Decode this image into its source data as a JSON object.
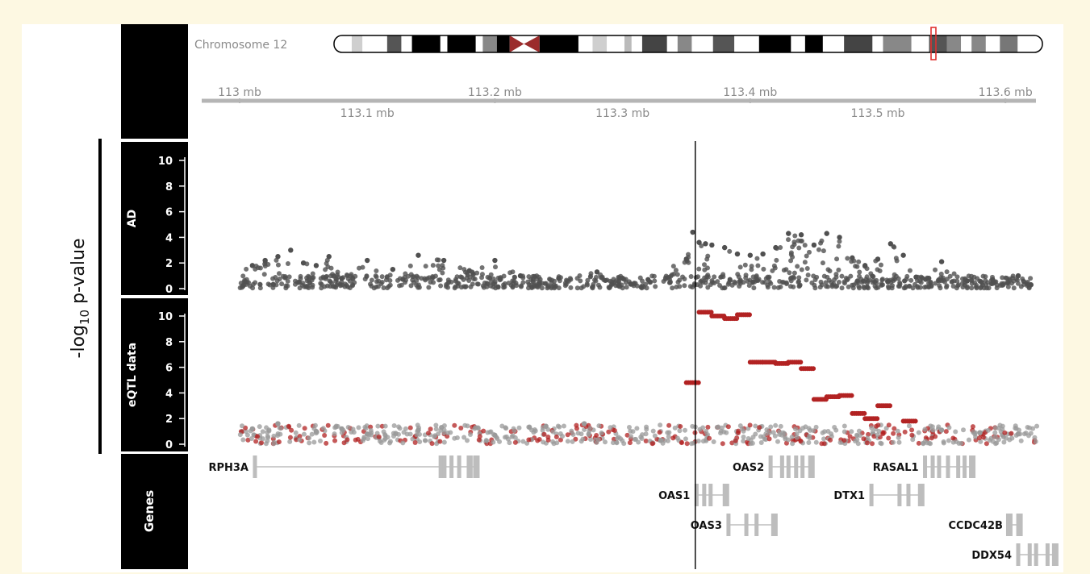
{
  "ylabel": {
    "prefix": "-log",
    "sub": "10",
    "suffix": " p-value"
  },
  "ideogram": {
    "label": "Chromosome 12",
    "highlight_color": "#e0302e",
    "centromere_color": "#9b2c2c"
  },
  "axis": {
    "unit": "mb",
    "range_mb": [
      112.97,
      113.645
    ],
    "top_ticks": [
      "113 mb",
      "113.2 mb",
      "113.4 mb",
      "113.6 mb"
    ],
    "bottom_ticks": [
      "113.1 mb",
      "113.3 mb",
      "113.5 mb"
    ],
    "top_tick_values": [
      113.0,
      113.2,
      113.4,
      113.6
    ],
    "bottom_tick_values": [
      113.1,
      113.3,
      113.5
    ]
  },
  "tracks": {
    "ad": {
      "label": "AD",
      "yticks": [
        "10",
        "8",
        "6",
        "4",
        "2",
        "0"
      ]
    },
    "eqtl": {
      "label": "eQTL data",
      "yticks": [
        "10",
        "8",
        "6",
        "4",
        "2",
        "0"
      ]
    },
    "genes": {
      "label": "Genes"
    }
  },
  "colors": {
    "ad_points": "#505050",
    "eqtl_grey": "#9a9a9a",
    "eqtl_red": "#b22222",
    "gene": "#bdbdbd",
    "track_header": "#000000"
  },
  "lead_variant_mb": 113.357,
  "chart_data": {
    "type": "scatter",
    "x_unit": "mb",
    "xlim": [
      112.97,
      113.645
    ],
    "ylim": [
      0,
      11
    ],
    "series": [
      {
        "name": "AD",
        "x": [
          113.01,
          113.02,
          113.03,
          113.04,
          113.05,
          113.06,
          113.07,
          113.08,
          113.1,
          113.12,
          113.14,
          113.16,
          113.18,
          113.2,
          113.22,
          113.25,
          113.28,
          113.3,
          113.32,
          113.35,
          113.355,
          113.36,
          113.365,
          113.37,
          113.38,
          113.39,
          113.4,
          113.41,
          113.42,
          113.43,
          113.44,
          113.45,
          113.46,
          113.47,
          113.48,
          113.49,
          113.5,
          113.51,
          113.52,
          113.53,
          113.55,
          113.57,
          113.59,
          113.61,
          113.62
        ],
        "y": [
          1.8,
          2.2,
          2.5,
          3.0,
          2.0,
          1.8,
          2.5,
          0.8,
          2.2,
          1.5,
          2.6,
          2.2,
          1.4,
          2.2,
          1.0,
          0.8,
          1.3,
          0.8,
          0.7,
          2.3,
          4.4,
          3.6,
          3.5,
          3.4,
          3.2,
          2.7,
          2.6,
          2.7,
          3.2,
          4.3,
          4.2,
          3.4,
          4.3,
          4.0,
          2.4,
          1.8,
          2.3,
          3.5,
          2.6,
          0.9,
          2.1,
          0.6,
          0.7,
          1.0,
          0.3
        ]
      },
      {
        "name": "eQTL data",
        "x": [
          113.01,
          113.03,
          113.06,
          113.08,
          113.1,
          113.14,
          113.2,
          113.24,
          113.27,
          113.33,
          113.35,
          113.36,
          113.37,
          113.38,
          113.39,
          113.4,
          113.41,
          113.42,
          113.43,
          113.44,
          113.45,
          113.46,
          113.47,
          113.48,
          113.49,
          113.5,
          113.52,
          113.55,
          113.58,
          113.61
        ],
        "y": [
          1.2,
          1.6,
          1.0,
          1.2,
          0.8,
          1.1,
          0.7,
          1.4,
          1.6,
          0.3,
          4.8,
          10.3,
          10.0,
          9.8,
          10.1,
          6.4,
          6.4,
          6.3,
          6.4,
          5.9,
          3.5,
          3.7,
          3.8,
          2.4,
          2.0,
          3.0,
          1.8,
          1.1,
          0.9,
          0.8
        ]
      }
    ]
  },
  "genes": [
    {
      "name": "RPH3A",
      "start": 113.012,
      "end": 113.186,
      "row": 0,
      "strand": "+",
      "exons": [
        113.012,
        113.1605,
        113.1575,
        113.166,
        113.172,
        113.1795,
        113.181,
        113.1855
      ],
      "label_side": "left"
    },
    {
      "name": "OAS1",
      "start": 113.358,
      "end": 113.382,
      "row": 1,
      "strand": "+",
      "exons": [
        113.358,
        113.364,
        113.369,
        113.381
      ],
      "label_side": "left"
    },
    {
      "name": "OAS3",
      "start": 113.383,
      "end": 113.42,
      "row": 2,
      "strand": "+",
      "exons": [
        113.383,
        113.397,
        113.405,
        113.419
      ],
      "label_side": "left"
    },
    {
      "name": "OAS2",
      "start": 113.416,
      "end": 113.449,
      "row": 0,
      "strand": "+",
      "exons": [
        113.416,
        113.425,
        113.43,
        113.436,
        113.441,
        113.448
      ],
      "label_side": "left"
    },
    {
      "name": "DTX1",
      "start": 113.495,
      "end": 113.535,
      "row": 1,
      "strand": "+",
      "exons": [
        113.495,
        113.517,
        113.524,
        113.534
      ],
      "label_side": "left"
    },
    {
      "name": "RASAL1",
      "start": 113.537,
      "end": 113.576,
      "row": 0,
      "strand": "-",
      "exons": [
        113.537,
        113.543,
        113.548,
        113.555,
        113.563,
        113.568,
        113.574
      ],
      "label_side": "left"
    },
    {
      "name": "CCDC42B",
      "start": 113.603,
      "end": 113.613,
      "row": 2,
      "strand": "+",
      "exons": [
        113.603,
        113.611
      ],
      "label_side": "left"
    },
    {
      "name": "DDX54",
      "start": 113.61,
      "end": 113.64,
      "row": 3,
      "strand": "-",
      "exons": [
        113.61,
        113.619,
        113.624,
        113.633,
        113.639
      ],
      "label_side": "left"
    }
  ]
}
